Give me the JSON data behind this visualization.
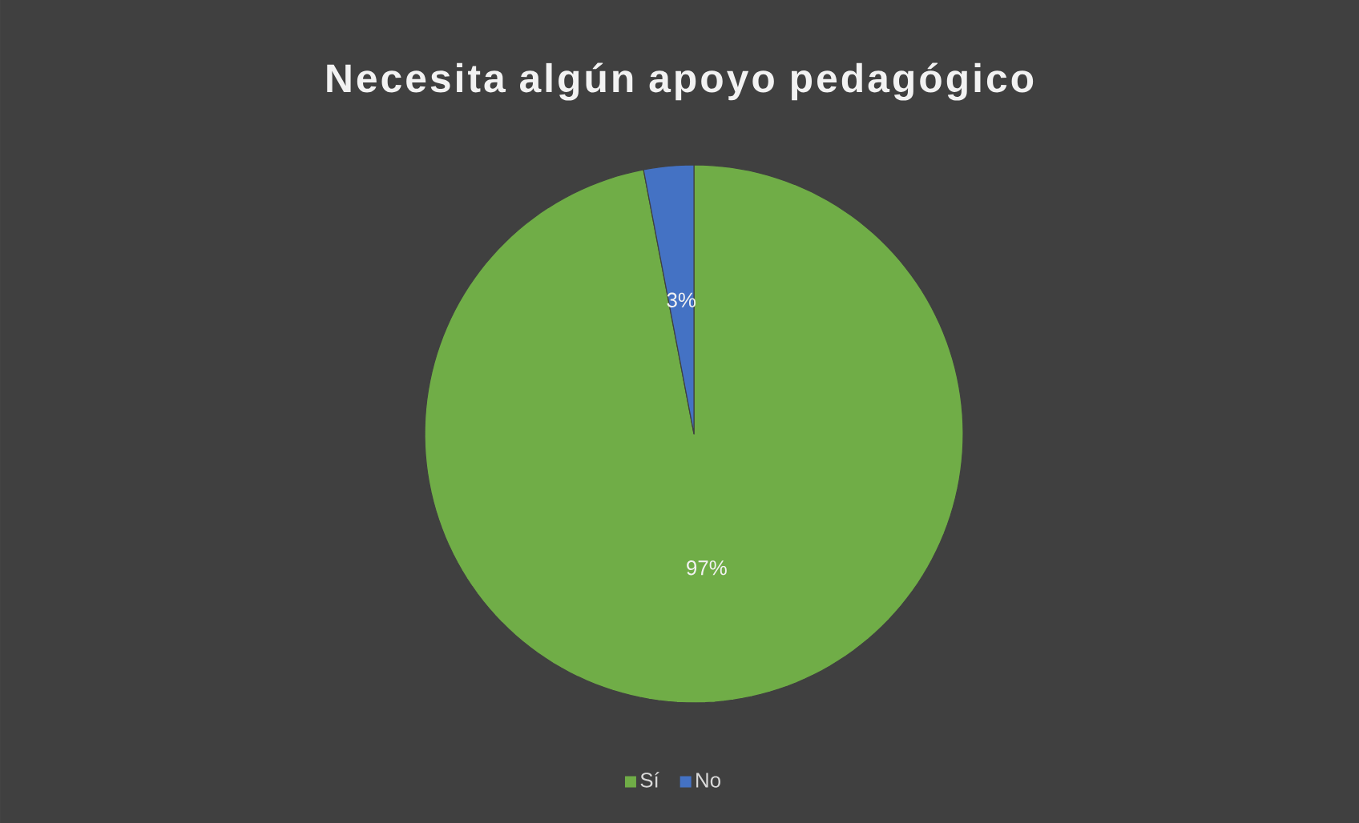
{
  "chart_data": {
    "type": "pie",
    "title": "Necesita algún apoyo pedagógico",
    "categories": [
      "Sí",
      "No"
    ],
    "values": [
      97,
      3
    ],
    "value_labels": [
      "97%",
      "3%"
    ],
    "colors": [
      "#70ad47",
      "#4472c4"
    ],
    "legend": "bottom"
  }
}
